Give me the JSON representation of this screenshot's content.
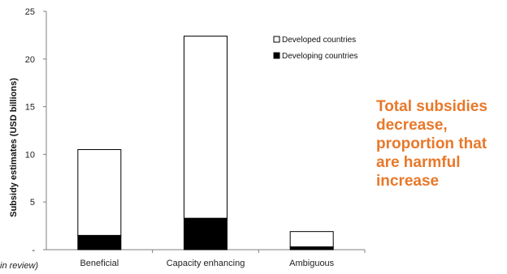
{
  "chart_data": {
    "type": "bar",
    "stacked": true,
    "categories": [
      "Beneficial",
      "Capacity enhancing",
      "Ambiguous"
    ],
    "series": [
      {
        "name": "Developing countries",
        "values": [
          1.5,
          3.3,
          0.3
        ],
        "color": "#000000"
      },
      {
        "name": "Developed countries",
        "values": [
          9.0,
          19.1,
          1.6
        ],
        "color": "#ffffff"
      }
    ],
    "ylabel": "Subsidy estimates (USD billions)",
    "ylim": [
      0,
      25
    ],
    "yticks": [
      0,
      5,
      10,
      15,
      20,
      25
    ],
    "ytick_labels": [
      "-",
      "5",
      "10",
      "15",
      "20",
      "25"
    ],
    "legend_position": "top-right",
    "legend_order": [
      "Developed countries",
      "Developing countries"
    ]
  },
  "callout": "Total subsidies decrease, proportion that are harmful increase",
  "footnote": "in review)"
}
